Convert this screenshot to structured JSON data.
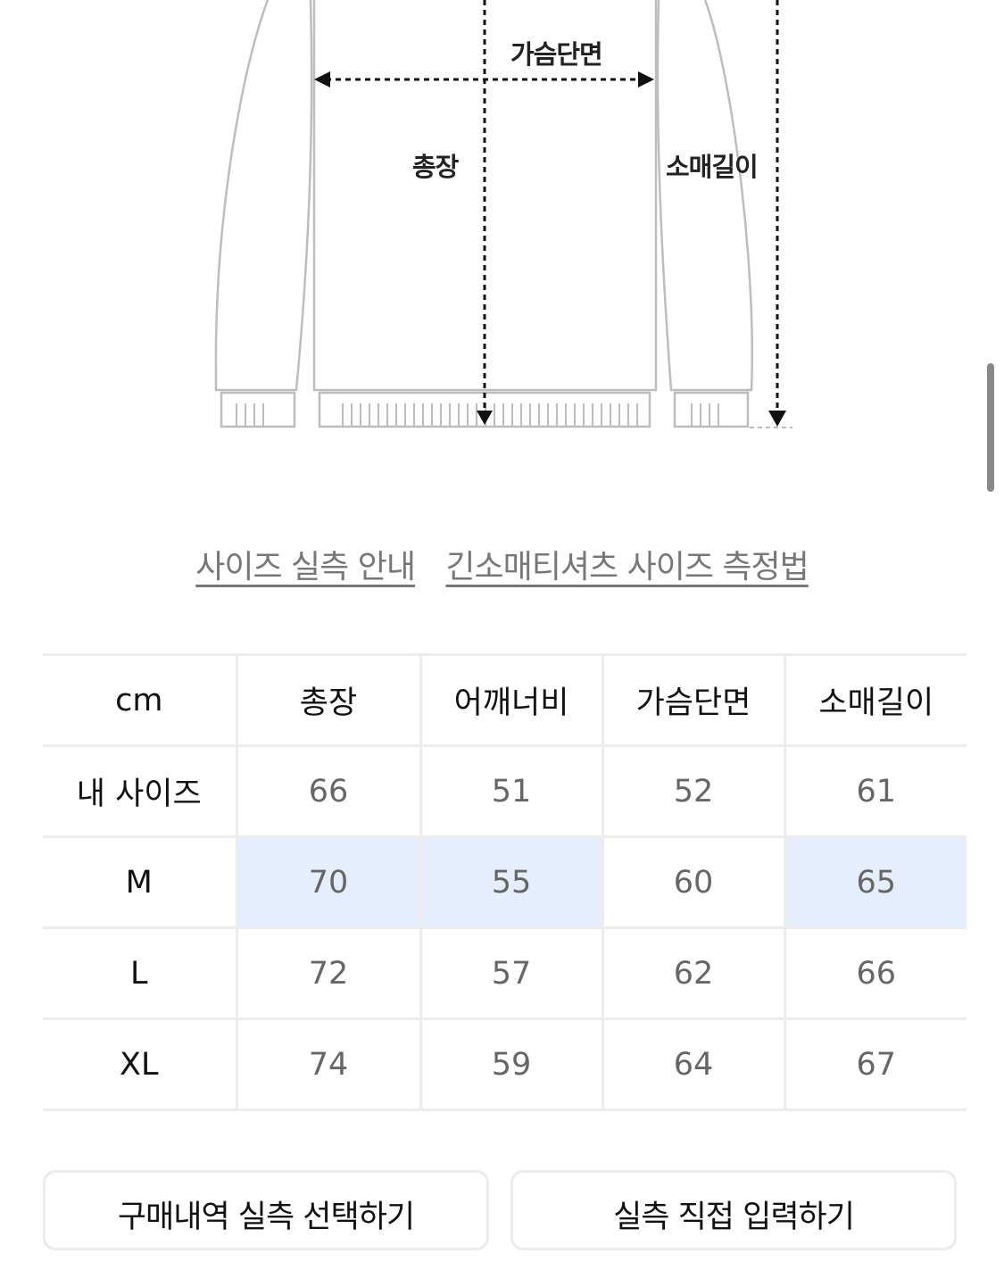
{
  "diagram": {
    "labels": {
      "chest": "가슴단면",
      "length": "총장",
      "sleeve": "소매길이"
    }
  },
  "links": {
    "guide": "사이즈 실측 안내",
    "method": "긴소매티셔츠 사이즈 측정법"
  },
  "table": {
    "headers": [
      "cm",
      "총장",
      "어깨너비",
      "가슴단면",
      "소매길이"
    ],
    "rows": [
      {
        "label": "내 사이즈",
        "values": [
          "66",
          "51",
          "52",
          "61"
        ]
      },
      {
        "label": "M",
        "values": [
          "70",
          "55",
          "60",
          "65"
        ],
        "highlighted": [
          "총장",
          "어깨너비",
          "소매길이"
        ]
      },
      {
        "label": "L",
        "values": [
          "72",
          "57",
          "62",
          "66"
        ]
      },
      {
        "label": "XL",
        "values": [
          "74",
          "59",
          "64",
          "67"
        ]
      }
    ],
    "highlight_color": "#e6edfd"
  },
  "buttons": {
    "purchase": "구매내역 실측 선택하기",
    "direct": "실측 직접 입력하기"
  }
}
